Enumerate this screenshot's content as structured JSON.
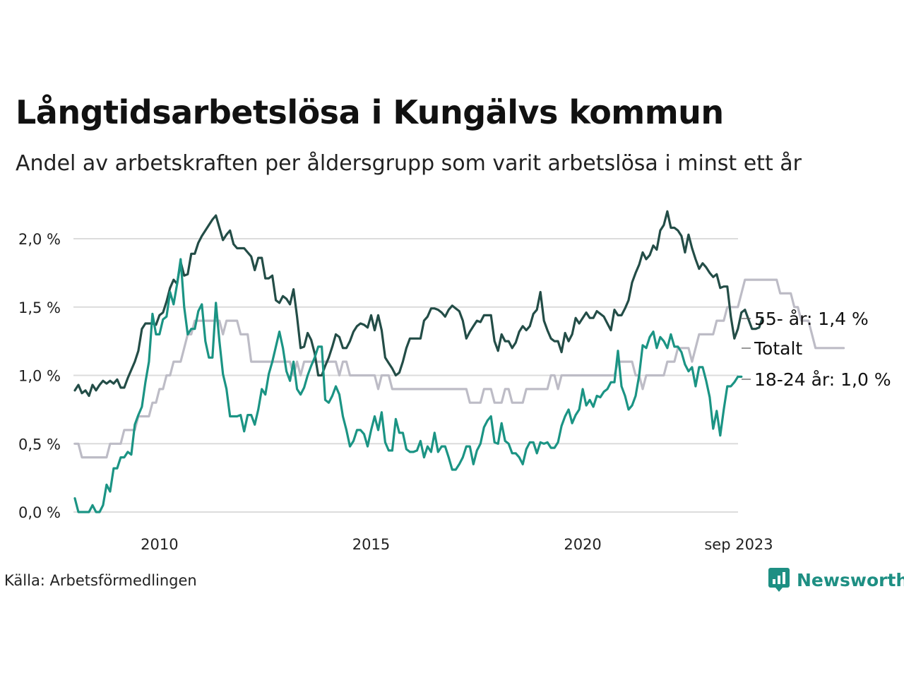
{
  "title": "Långtidsarbetslösa i Kungälvs kommun",
  "subtitle": "Andel av arbetskraften per åldersgrupp som varit arbetslösa i minst ett år",
  "source": "Källa: Arbetsförmedlingen",
  "brand": "Newsworthy",
  "colors": {
    "grid": "#dcdcdc",
    "brand": "#1e8f83"
  },
  "chart_data": {
    "type": "line",
    "x_start": 2008.0,
    "x_step_months": 1,
    "xlim": [
      2008.0,
      2023.67
    ],
    "ylim": [
      0,
      2.3
    ],
    "yticks": [
      0,
      0.5,
      1.0,
      1.5,
      2.0
    ],
    "ytick_labels": [
      "0,0 %",
      "0,5 %",
      "1,0 %",
      "1,5 %",
      "2,0 %"
    ],
    "xticks": [
      2010,
      2015,
      2020,
      2023.67
    ],
    "xtick_labels": [
      "2010",
      "2015",
      "2020",
      "sep 2023"
    ],
    "series": [
      {
        "name": "Totalt",
        "label": "Totalt",
        "color": "#bdbcc6",
        "values": [
          0.5,
          0.5,
          0.4,
          0.4,
          0.4,
          0.4,
          0.4,
          0.4,
          0.4,
          0.4,
          0.5,
          0.5,
          0.5,
          0.5,
          0.6,
          0.6,
          0.6,
          0.6,
          0.7,
          0.7,
          0.7,
          0.7,
          0.8,
          0.8,
          0.9,
          0.9,
          1.0,
          1.0,
          1.1,
          1.1,
          1.1,
          1.2,
          1.3,
          1.3,
          1.4,
          1.4,
          1.4,
          1.4,
          1.4,
          1.4,
          1.4,
          1.4,
          1.3,
          1.4,
          1.4,
          1.4,
          1.4,
          1.3,
          1.3,
          1.3,
          1.1,
          1.1,
          1.1,
          1.1,
          1.1,
          1.1,
          1.1,
          1.1,
          1.1,
          1.1,
          1.1,
          1.1,
          1.0,
          1.1,
          1.0,
          1.1,
          1.1,
          1.1,
          1.1,
          1.1,
          1.1,
          1.1,
          1.1,
          1.1,
          1.1,
          1.0,
          1.1,
          1.1,
          1.0,
          1.0,
          1.0,
          1.0,
          1.0,
          1.0,
          1.0,
          1.0,
          0.9,
          1.0,
          1.0,
          1.0,
          0.9,
          0.9,
          0.9,
          0.9,
          0.9,
          0.9,
          0.9,
          0.9,
          0.9,
          0.9,
          0.9,
          0.9,
          0.9,
          0.9,
          0.9,
          0.9,
          0.9,
          0.9,
          0.9,
          0.9,
          0.9,
          0.9,
          0.8,
          0.8,
          0.8,
          0.8,
          0.9,
          0.9,
          0.9,
          0.8,
          0.8,
          0.8,
          0.9,
          0.9,
          0.8,
          0.8,
          0.8,
          0.8,
          0.9,
          0.9,
          0.9,
          0.9,
          0.9,
          0.9,
          0.9,
          1.0,
          1.0,
          0.9,
          1.0,
          1.0,
          1.0,
          1.0,
          1.0,
          1.0,
          1.0,
          1.0,
          1.0,
          1.0,
          1.0,
          1.0,
          1.0,
          1.0,
          1.0,
          1.0,
          1.1,
          1.1,
          1.1,
          1.1,
          1.1,
          1.0,
          1.0,
          0.9,
          1.0,
          1.0,
          1.0,
          1.0,
          1.0,
          1.0,
          1.1,
          1.1,
          1.1,
          1.2,
          1.2,
          1.2,
          1.2,
          1.1,
          1.2,
          1.3,
          1.3,
          1.3,
          1.3,
          1.3,
          1.4,
          1.4,
          1.4,
          1.5,
          1.5,
          1.5,
          1.5,
          1.6,
          1.7,
          1.7,
          1.7,
          1.7,
          1.7,
          1.7,
          1.7,
          1.7,
          1.7,
          1.7,
          1.6,
          1.6,
          1.6,
          1.6,
          1.5,
          1.5,
          1.4,
          1.4,
          1.4,
          1.3,
          1.2,
          1.2,
          1.2,
          1.2,
          1.2,
          1.2,
          1.2,
          1.2,
          1.2
        ]
      },
      {
        "name": "55- år",
        "label": "55- år: 1,4 %",
        "color": "#234d47",
        "values": [
          0.89,
          0.93,
          0.87,
          0.89,
          0.85,
          0.93,
          0.89,
          0.93,
          0.96,
          0.94,
          0.96,
          0.94,
          0.97,
          0.91,
          0.91,
          0.98,
          1.04,
          1.1,
          1.18,
          1.34,
          1.38,
          1.38,
          1.38,
          1.37,
          1.44,
          1.46,
          1.54,
          1.64,
          1.7,
          1.67,
          1.83,
          1.73,
          1.74,
          1.89,
          1.89,
          1.97,
          2.02,
          2.06,
          2.1,
          2.14,
          2.17,
          2.08,
          1.99,
          2.03,
          2.06,
          1.96,
          1.93,
          1.93,
          1.93,
          1.9,
          1.87,
          1.77,
          1.86,
          1.86,
          1.71,
          1.71,
          1.73,
          1.55,
          1.53,
          1.58,
          1.56,
          1.52,
          1.63,
          1.43,
          1.2,
          1.21,
          1.31,
          1.26,
          1.16,
          1.0,
          1.0,
          1.07,
          1.13,
          1.21,
          1.3,
          1.28,
          1.2,
          1.2,
          1.25,
          1.32,
          1.36,
          1.38,
          1.37,
          1.35,
          1.44,
          1.33,
          1.44,
          1.33,
          1.13,
          1.09,
          1.05,
          1.0,
          1.02,
          1.1,
          1.2,
          1.27,
          1.27,
          1.27,
          1.27,
          1.4,
          1.43,
          1.49,
          1.49,
          1.48,
          1.46,
          1.43,
          1.48,
          1.51,
          1.49,
          1.47,
          1.4,
          1.27,
          1.32,
          1.36,
          1.4,
          1.39,
          1.44,
          1.44,
          1.44,
          1.25,
          1.18,
          1.3,
          1.25,
          1.25,
          1.2,
          1.24,
          1.32,
          1.36,
          1.33,
          1.36,
          1.45,
          1.48,
          1.61,
          1.4,
          1.33,
          1.27,
          1.25,
          1.25,
          1.17,
          1.31,
          1.25,
          1.3,
          1.42,
          1.38,
          1.42,
          1.46,
          1.42,
          1.42,
          1.47,
          1.45,
          1.43,
          1.38,
          1.33,
          1.48,
          1.44,
          1.44,
          1.49,
          1.55,
          1.68,
          1.75,
          1.81,
          1.9,
          1.85,
          1.88,
          1.95,
          1.92,
          2.06,
          2.1,
          2.2,
          2.08,
          2.08,
          2.06,
          2.02,
          1.9,
          2.03,
          1.93,
          1.85,
          1.78,
          1.82,
          1.79,
          1.75,
          1.72,
          1.74,
          1.64,
          1.65,
          1.65,
          1.43,
          1.27,
          1.34,
          1.46,
          1.48,
          1.41,
          1.34,
          1.34,
          1.35,
          1.42
        ]
      },
      {
        "name": "18-24 år",
        "label": "18-24 år: 1,0 %",
        "color": "#1b9484",
        "values": [
          0.1,
          0.0,
          0.0,
          0.0,
          0.0,
          0.05,
          0.0,
          0.0,
          0.05,
          0.2,
          0.15,
          0.32,
          0.32,
          0.4,
          0.4,
          0.44,
          0.42,
          0.64,
          0.71,
          0.77,
          0.95,
          1.1,
          1.45,
          1.3,
          1.3,
          1.41,
          1.43,
          1.61,
          1.52,
          1.67,
          1.85,
          1.5,
          1.3,
          1.34,
          1.34,
          1.47,
          1.52,
          1.25,
          1.13,
          1.13,
          1.53,
          1.25,
          1.01,
          0.9,
          0.7,
          0.7,
          0.7,
          0.71,
          0.59,
          0.71,
          0.71,
          0.64,
          0.75,
          0.9,
          0.86,
          1.01,
          1.1,
          1.21,
          1.32,
          1.2,
          1.03,
          0.96,
          1.1,
          0.9,
          0.86,
          0.91,
          1.0,
          1.07,
          1.13,
          1.21,
          1.21,
          0.82,
          0.8,
          0.85,
          0.92,
          0.86,
          0.7,
          0.6,
          0.48,
          0.52,
          0.6,
          0.6,
          0.57,
          0.48,
          0.6,
          0.7,
          0.6,
          0.73,
          0.51,
          0.45,
          0.45,
          0.68,
          0.58,
          0.58,
          0.46,
          0.44,
          0.44,
          0.45,
          0.52,
          0.4,
          0.48,
          0.44,
          0.58,
          0.44,
          0.48,
          0.48,
          0.4,
          0.31,
          0.31,
          0.35,
          0.4,
          0.48,
          0.48,
          0.35,
          0.45,
          0.5,
          0.62,
          0.67,
          0.7,
          0.51,
          0.5,
          0.65,
          0.52,
          0.5,
          0.43,
          0.43,
          0.4,
          0.35,
          0.46,
          0.51,
          0.51,
          0.43,
          0.51,
          0.5,
          0.51,
          0.47,
          0.47,
          0.51,
          0.63,
          0.7,
          0.75,
          0.65,
          0.71,
          0.75,
          0.9,
          0.78,
          0.82,
          0.77,
          0.85,
          0.84,
          0.88,
          0.9,
          0.95,
          0.95,
          1.18,
          0.92,
          0.85,
          0.75,
          0.78,
          0.85,
          1.0,
          1.22,
          1.2,
          1.28,
          1.32,
          1.2,
          1.28,
          1.25,
          1.2,
          1.3,
          1.21,
          1.21,
          1.17,
          1.08,
          1.03,
          1.06,
          0.92,
          1.06,
          1.06,
          0.96,
          0.84,
          0.61,
          0.74,
          0.56,
          0.75,
          0.92,
          0.92,
          0.95,
          0.99,
          0.99
        ]
      }
    ]
  }
}
